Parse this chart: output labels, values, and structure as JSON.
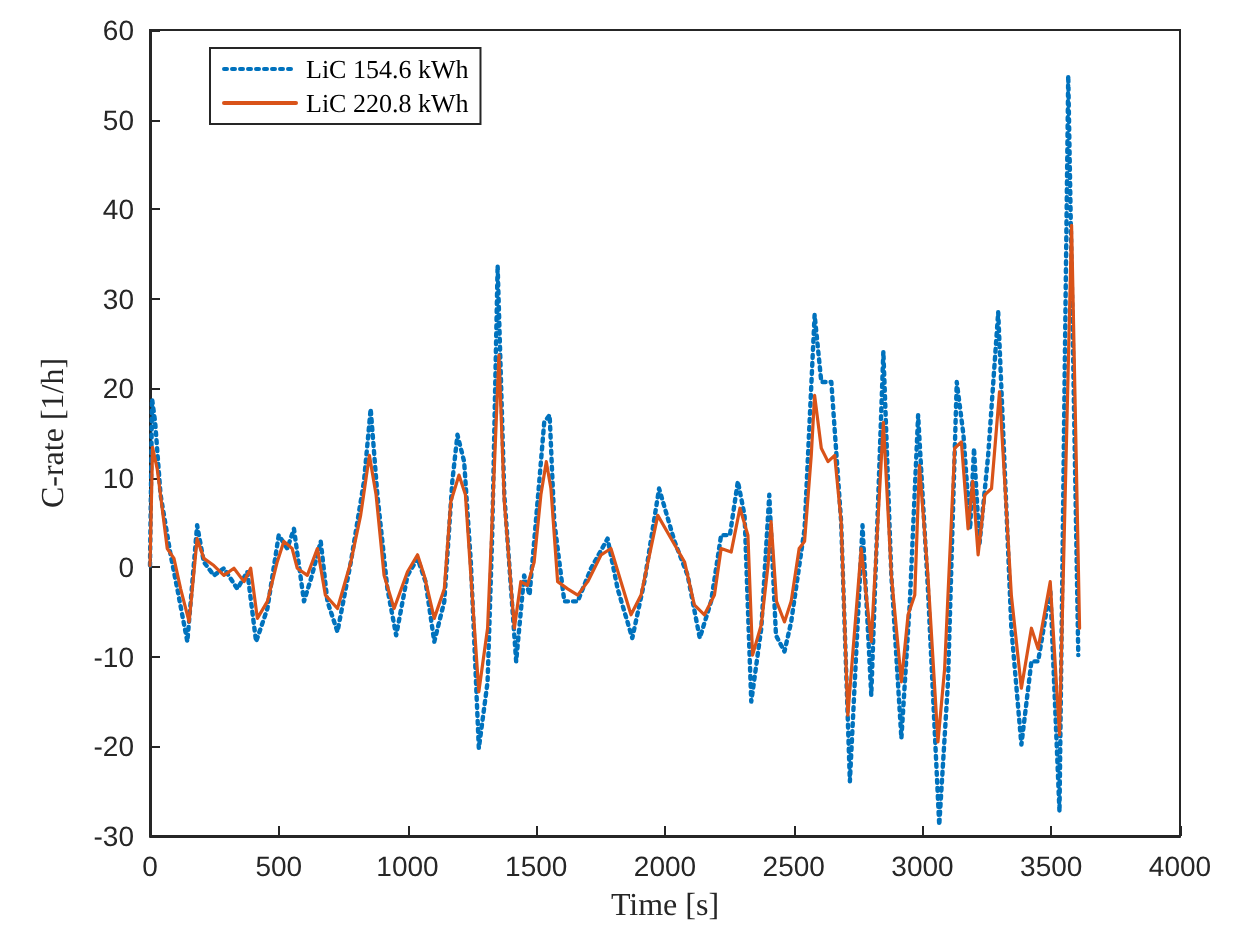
{
  "chart_data": {
    "type": "line",
    "xlabel": "Time [s]",
    "ylabel": "C-rate [1/h]",
    "xlim": [
      0,
      4000
    ],
    "xticks": [
      0,
      500,
      1000,
      1500,
      2000,
      2500,
      3000,
      3500,
      4000
    ],
    "ylim": [
      -30,
      60
    ],
    "yticks": [
      -30,
      -20,
      -10,
      0,
      10,
      20,
      30,
      40,
      50,
      60
    ],
    "grid": false,
    "legend": "top left",
    "series": [
      {
        "name": "LiC 154.6 kWh",
        "color": "#0072bd",
        "line_style": "dotted",
        "x": [
          0,
          8,
          20,
          41,
          80,
          106,
          145,
          183,
          209,
          248,
          287,
          339,
          378,
          412,
          456,
          500,
          533,
          559,
          598,
          629,
          663,
          689,
          728,
          780,
          831,
          857,
          883,
          922,
          956,
          1000,
          1039,
          1070,
          1104,
          1143,
          1174,
          1194,
          1220,
          1246,
          1277,
          1311,
          1329,
          1350,
          1376,
          1422,
          1453,
          1474,
          1505,
          1531,
          1552,
          1570,
          1609,
          1661,
          1713,
          1777,
          1816,
          1873,
          1920,
          1977,
          2037,
          2088,
          2135,
          2179,
          2218,
          2252,
          2283,
          2309,
          2335,
          2374,
          2405,
          2431,
          2464,
          2490,
          2542,
          2581,
          2607,
          2646,
          2684,
          2718,
          2767,
          2801,
          2848,
          2879,
          2918,
          2951,
          2983,
          3021,
          3065,
          3099,
          3133,
          3159,
          3185,
          3200,
          3221,
          3255,
          3294,
          3345,
          3384,
          3423,
          3449,
          3496,
          3532,
          3566,
          3605
        ],
        "values": [
          0.2,
          18.8,
          16.2,
          8.1,
          1.4,
          -2.4,
          -8.3,
          4.7,
          0.6,
          -0.9,
          -0.1,
          -2.4,
          -0.5,
          -8.3,
          -4.6,
          3.6,
          2.1,
          4.3,
          -3.8,
          -0.9,
          2.9,
          -3.8,
          -7.2,
          0.6,
          9.6,
          17.7,
          8.1,
          -2.4,
          -7.6,
          -0.9,
          1,
          -1.6,
          -8.3,
          -3.8,
          9.6,
          14.8,
          11.8,
          0.6,
          -20.2,
          -12.8,
          3.6,
          33.7,
          8.1,
          -10.5,
          -0.9,
          -3.1,
          7.3,
          16.2,
          17,
          5.1,
          -3.8,
          -3.8,
          -0.1,
          3.2,
          -2.4,
          -7.9,
          -1.6,
          8.8,
          2.9,
          -0.9,
          -7.9,
          -3.8,
          3.6,
          3.6,
          9.6,
          5.8,
          -15,
          -6.8,
          8.1,
          -7.6,
          -9.4,
          -6.1,
          4.3,
          28.2,
          20.7,
          20.7,
          5.1,
          -23.9,
          4.7,
          -14.3,
          24.1,
          -0.9,
          -19.1,
          -3.8,
          17,
          -2.4,
          -28.8,
          -12.8,
          20.7,
          14.8,
          4.3,
          13.3,
          2.5,
          12.5,
          28.5,
          -6.8,
          -19.8,
          -10.5,
          -10.5,
          -2.4,
          -27.3,
          54.9,
          -9.8
        ]
      },
      {
        "name": "LiC 220.8 kWh",
        "color": "#d95319",
        "line_style": "solid",
        "x": [
          0,
          10,
          28,
          67,
          93,
          119,
          152,
          183,
          209,
          248,
          287,
          326,
          365,
          391,
          417,
          456,
          494,
          520,
          552,
          572,
          611,
          650,
          681,
          728,
          780,
          818,
          852,
          878,
          909,
          948,
          1000,
          1039,
          1065,
          1104,
          1143,
          1168,
          1200,
          1225,
          1246,
          1277,
          1311,
          1337,
          1355,
          1376,
          1415,
          1440,
          1466,
          1492,
          1518,
          1539,
          1557,
          1583,
          1622,
          1661,
          1700,
          1752,
          1790,
          1829,
          1868,
          1907,
          1972,
          2024,
          2076,
          2114,
          2153,
          2192,
          2218,
          2257,
          2291,
          2322,
          2340,
          2374,
          2400,
          2412,
          2433,
          2464,
          2490,
          2521,
          2542,
          2568,
          2581,
          2607,
          2633,
          2659,
          2684,
          2710,
          2762,
          2801,
          2848,
          2879,
          2918,
          2944,
          2970,
          2988,
          3021,
          3060,
          3086,
          3125,
          3151,
          3177,
          3195,
          3216,
          3242,
          3268,
          3299,
          3345,
          3384,
          3423,
          3449,
          3496,
          3532,
          3579,
          3610
        ],
        "values": [
          0.2,
          13.4,
          11,
          2.1,
          1,
          -2.4,
          -6.1,
          3.2,
          1,
          0.2,
          -0.9,
          -0.1,
          -1.6,
          -0.1,
          -5.7,
          -3.8,
          0.6,
          2.9,
          2.1,
          -0.1,
          -0.9,
          2.1,
          -3.1,
          -4.6,
          0.6,
          5.8,
          12.5,
          8.1,
          -0.9,
          -4.6,
          -0.5,
          1.4,
          -0.9,
          -5.7,
          -2.4,
          7.3,
          10.3,
          8.1,
          -0.9,
          -13.9,
          -6.8,
          11,
          23.7,
          7.3,
          -6.8,
          -1.6,
          -2,
          0.6,
          8.1,
          11.8,
          8.8,
          -1.6,
          -2.4,
          -3.1,
          -1.6,
          1.4,
          2.1,
          -1.6,
          -5.3,
          -3.1,
          5.8,
          3.2,
          0.6,
          -4.2,
          -5.3,
          -3.1,
          2.1,
          1.7,
          6.6,
          3.6,
          -9.8,
          -6.4,
          0.2,
          5.1,
          -3.8,
          -6.1,
          -3.8,
          2.1,
          2.9,
          12.5,
          19.2,
          13.3,
          11.8,
          12.5,
          5.1,
          -16.5,
          2.1,
          -8.3,
          16.2,
          -0.9,
          -12.8,
          -5.3,
          -3.1,
          11.4,
          -0.9,
          -19.5,
          -11.3,
          13.3,
          14,
          4.3,
          9.6,
          1.4,
          8.1,
          8.8,
          19.6,
          -3.1,
          -13.5,
          -6.8,
          -9.1,
          -1.6,
          -18.7,
          38.2,
          -6.8
        ]
      }
    ]
  }
}
